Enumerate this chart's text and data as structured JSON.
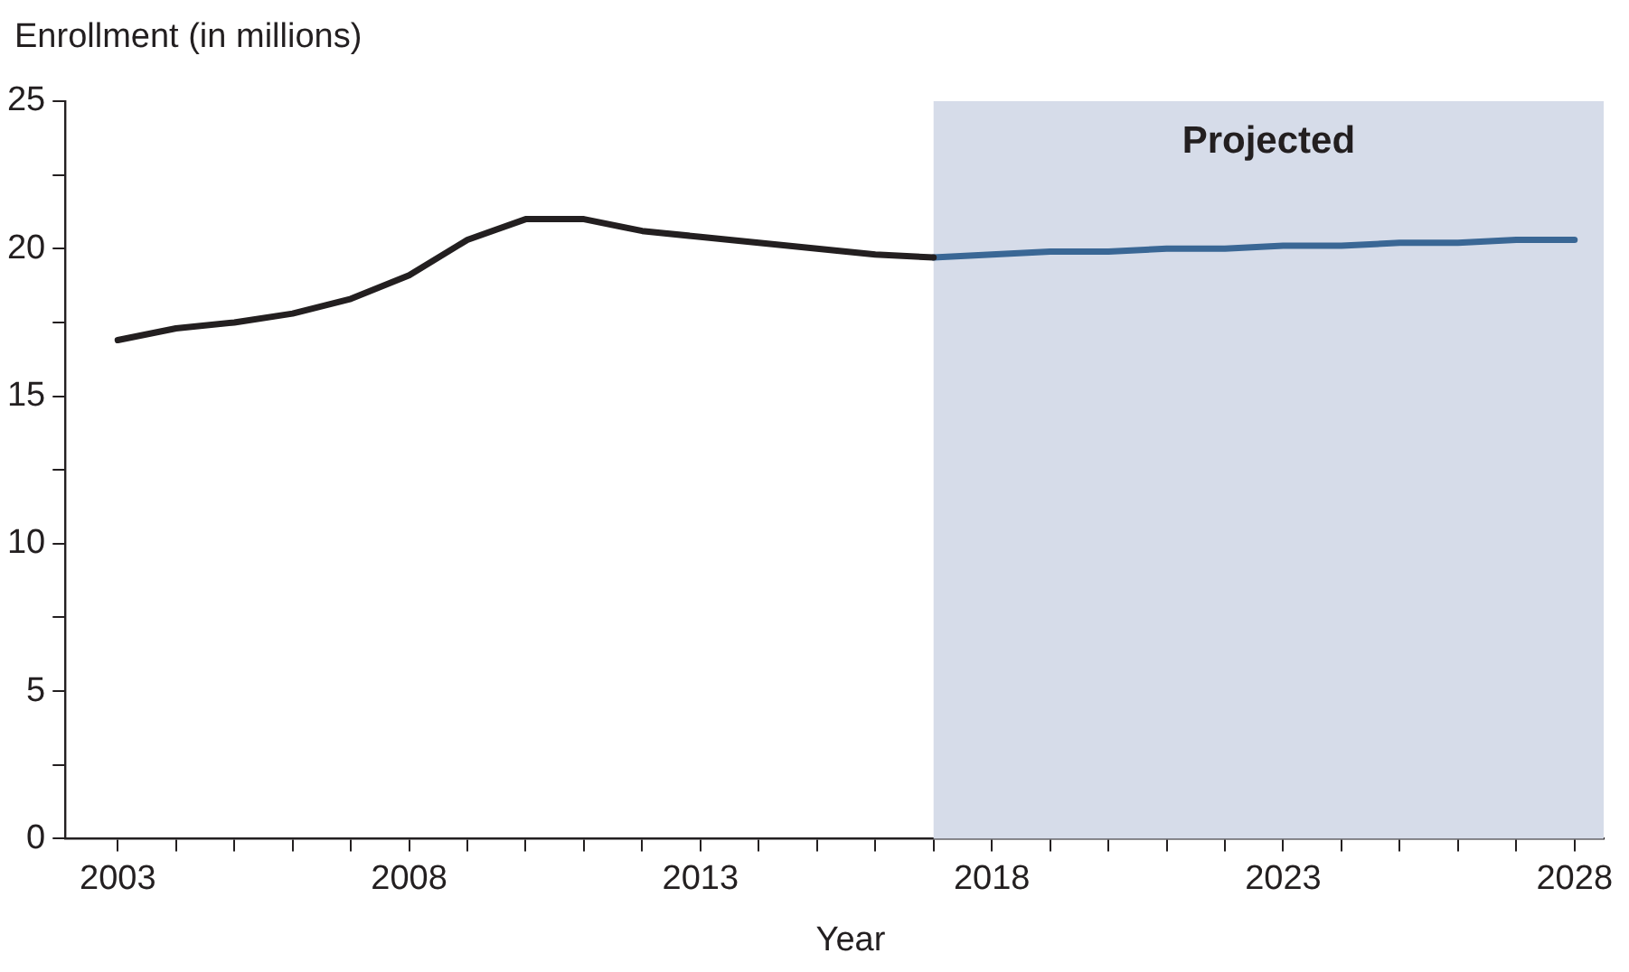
{
  "chart_data": {
    "type": "line",
    "ylabel": "Enrollment (in millions)",
    "xlabel": "Year",
    "xlim": [
      2002.1,
      2028.5
    ],
    "xticks": [
      2003,
      {
        "value": 2004,
        "label": null
      },
      {
        "value": 2005,
        "label": null
      },
      {
        "value": 2006,
        "label": null
      },
      {
        "value": 2007,
        "label": null
      },
      2008,
      {
        "value": 2009,
        "label": null
      },
      {
        "value": 2010,
        "label": null
      },
      {
        "value": 2011,
        "label": null
      },
      {
        "value": 2012,
        "label": null
      },
      2013,
      {
        "value": 2014,
        "label": null
      },
      {
        "value": 2015,
        "label": null
      },
      {
        "value": 2016,
        "label": null
      },
      {
        "value": 2017,
        "label": null
      },
      2018,
      {
        "value": 2019,
        "label": null
      },
      {
        "value": 2020,
        "label": null
      },
      {
        "value": 2021,
        "label": null
      },
      {
        "value": 2022,
        "label": null
      },
      2023,
      {
        "value": 2024,
        "label": null
      },
      {
        "value": 2025,
        "label": null
      },
      {
        "value": 2026,
        "label": null
      },
      {
        "value": 2027,
        "label": null
      },
      2028
    ],
    "ylim": [
      0,
      25
    ],
    "yticks": [
      0,
      {
        "value": 2.5,
        "label": null
      },
      5,
      {
        "value": 7.5,
        "label": null
      },
      10,
      {
        "value": 12.5,
        "label": null
      },
      15,
      {
        "value": 17.5,
        "label": null
      },
      20,
      {
        "value": 22.5,
        "label": null
      },
      25
    ],
    "grid": false,
    "legend": false,
    "marker": "none",
    "line_style": "solid",
    "bands": [
      {
        "axis": "x",
        "from": 2017,
        "to": 2028.5,
        "label": "Projected",
        "color": "#d6dce9"
      }
    ],
    "series": [
      {
        "color": "#231f20",
        "x": [
          2003,
          2004,
          2005,
          2006,
          2007,
          2008,
          2009,
          2010,
          2011,
          2012,
          2013,
          2014,
          2015,
          2016,
          2017
        ],
        "values": [
          16.9,
          17.3,
          17.5,
          17.8,
          18.3,
          19.1,
          20.3,
          21.0,
          21.0,
          20.6,
          20.4,
          20.2,
          20.0,
          19.8,
          19.7
        ]
      },
      {
        "color": "#3a6795",
        "x": [
          2017,
          2018,
          2019,
          2020,
          2021,
          2022,
          2023,
          2024,
          2025,
          2026,
          2027,
          2028
        ],
        "values": [
          19.7,
          19.8,
          19.9,
          19.9,
          20.0,
          20.0,
          20.1,
          20.1,
          20.2,
          20.2,
          20.3,
          20.3
        ]
      }
    ]
  }
}
